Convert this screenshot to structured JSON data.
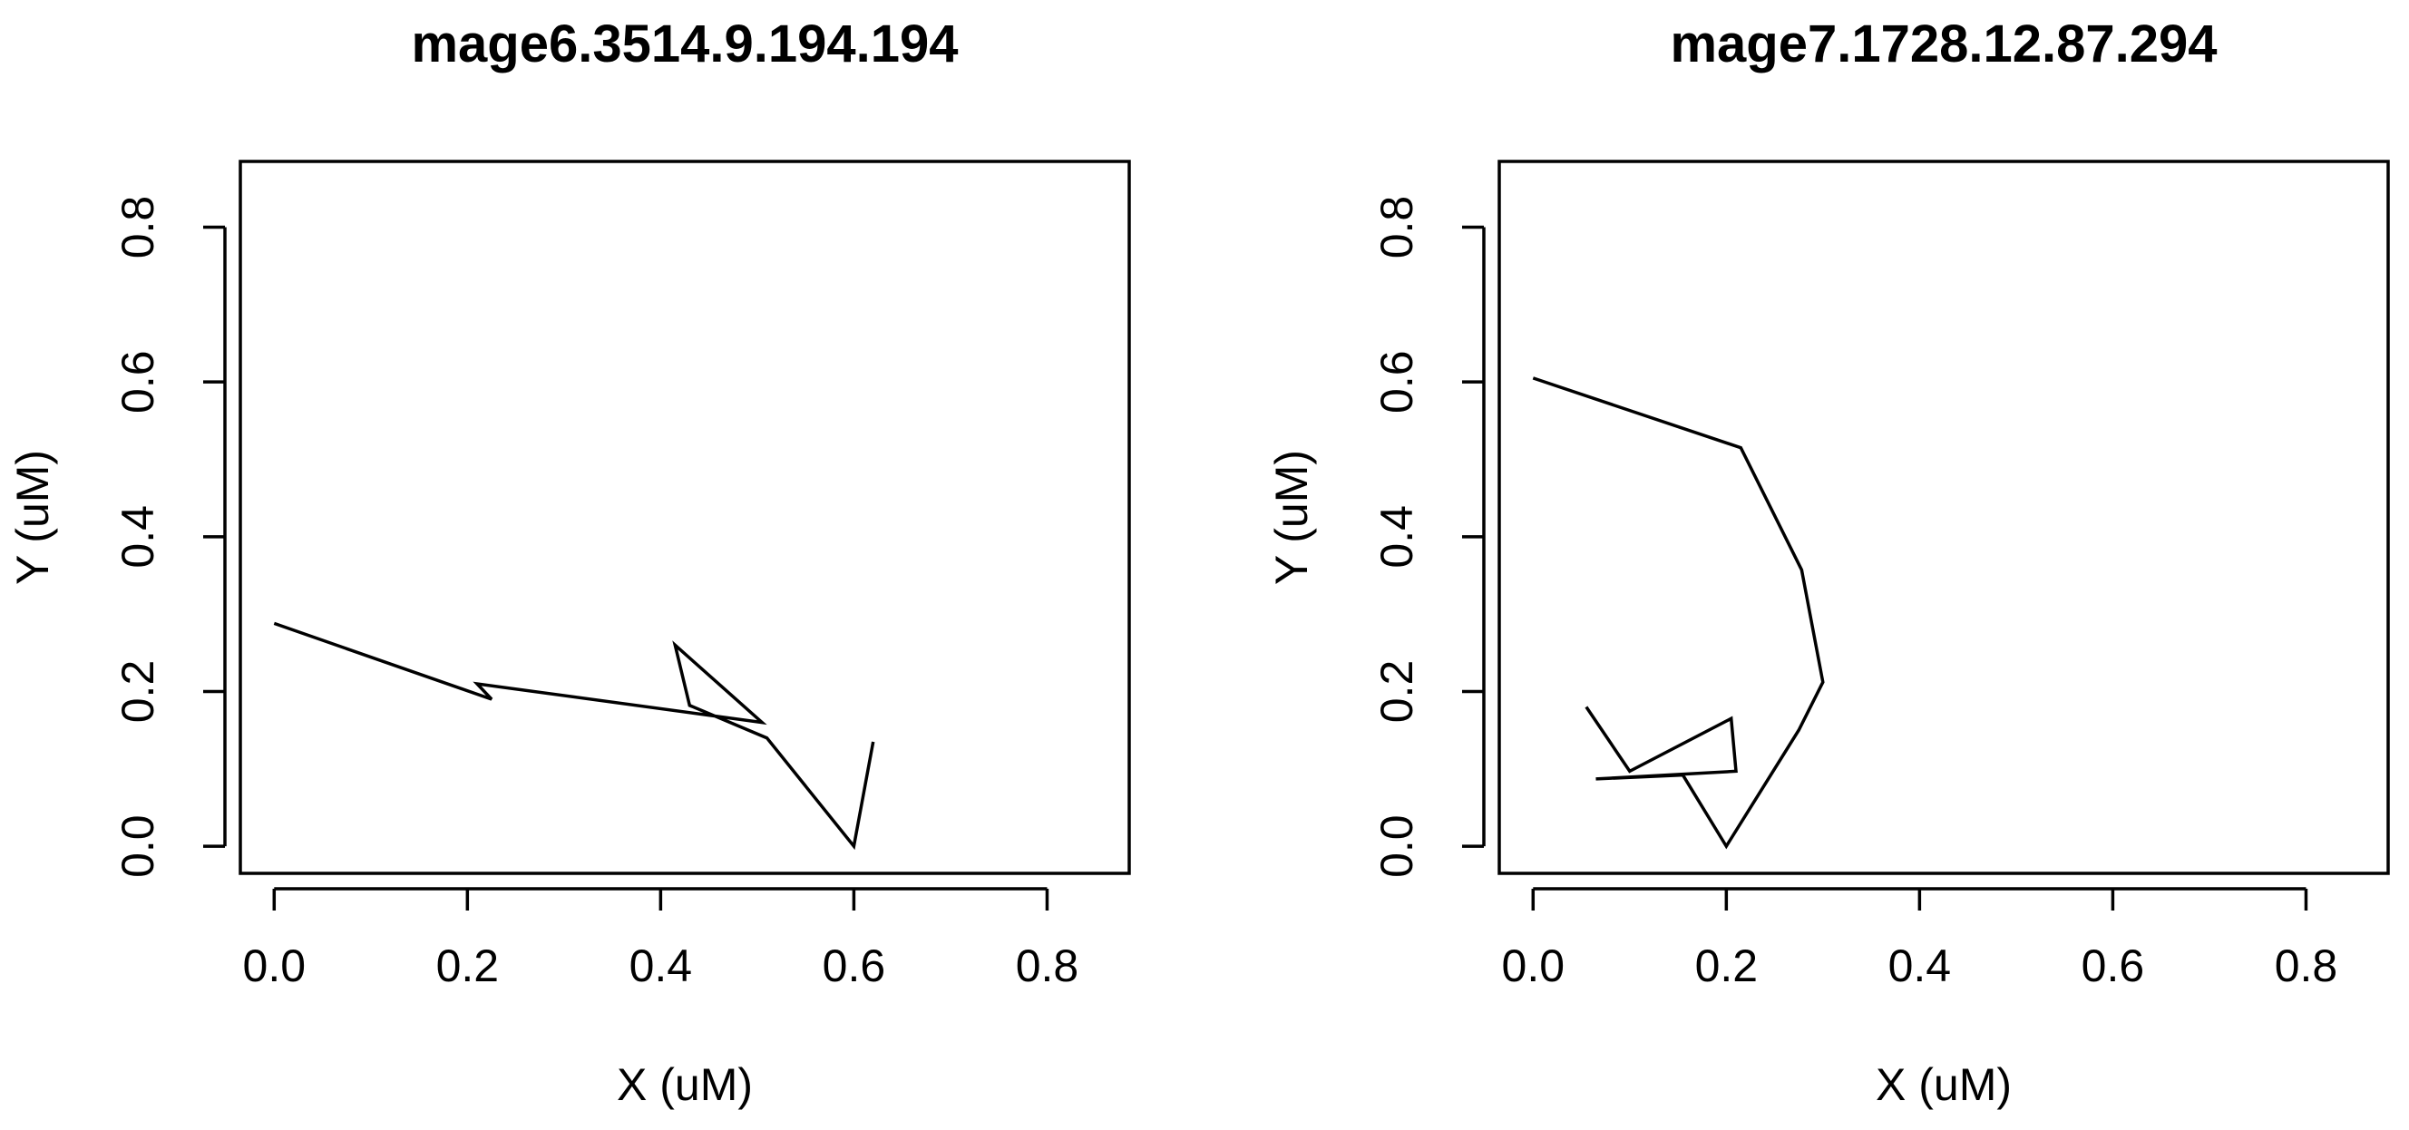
{
  "chart_data": [
    {
      "type": "line",
      "title": "mage6.3514.9.194.194",
      "xlabel": "X (uM)",
      "ylabel": "Y (uM)",
      "xlim": [
        -0.035,
        0.885
      ],
      "ylim": [
        -0.035,
        0.885
      ],
      "xticks": [
        0.0,
        0.2,
        0.4,
        0.6,
        0.8
      ],
      "yticks": [
        0.0,
        0.2,
        0.4,
        0.6,
        0.8
      ],
      "xtick_labels": [
        "0.0",
        "0.2",
        "0.4",
        "0.6",
        "0.8"
      ],
      "ytick_labels": [
        "0.0",
        "0.2",
        "0.4",
        "0.6",
        "0.8"
      ],
      "grid": false,
      "x": [
        0.0,
        0.225,
        0.21,
        0.505,
        0.415,
        0.43,
        0.51,
        0.6,
        0.62
      ],
      "y": [
        0.288,
        0.19,
        0.21,
        0.16,
        0.26,
        0.182,
        0.14,
        0.0,
        0.135
      ]
    },
    {
      "type": "line",
      "title": "mage7.1728.12.87.294",
      "xlabel": "X (uM)",
      "ylabel": "Y (uM)",
      "xlim": [
        -0.035,
        0.885
      ],
      "ylim": [
        -0.035,
        0.885
      ],
      "xticks": [
        0.0,
        0.2,
        0.4,
        0.6,
        0.8
      ],
      "yticks": [
        0.0,
        0.2,
        0.4,
        0.6,
        0.8
      ],
      "xtick_labels": [
        "0.0",
        "0.2",
        "0.4",
        "0.6",
        "0.8"
      ],
      "ytick_labels": [
        "0.0",
        "0.2",
        "0.4",
        "0.6",
        "0.8"
      ],
      "grid": false,
      "x": [
        0.0,
        0.215,
        0.278,
        0.3,
        0.275,
        0.2,
        0.155,
        0.065,
        0.21,
        0.205,
        0.1,
        0.055
      ],
      "y": [
        0.605,
        0.515,
        0.357,
        0.212,
        0.15,
        0.0,
        0.092,
        0.087,
        0.097,
        0.165,
        0.097,
        0.18
      ]
    }
  ]
}
